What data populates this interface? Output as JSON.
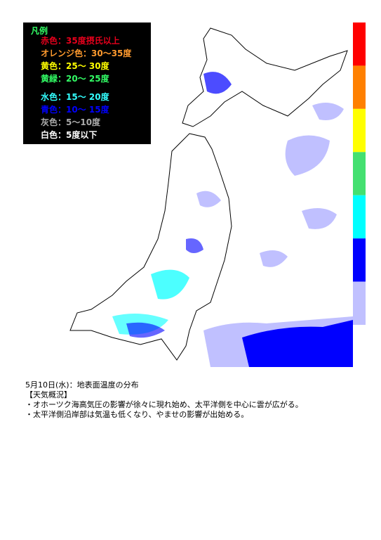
{
  "legend": {
    "title": "凡例",
    "items": [
      {
        "label": "赤色：35度摂氏以上",
        "color": "#e8001c"
      },
      {
        "label": "オレンジ色：30～35度",
        "color": "#ff9a2e"
      },
      {
        "label": "黄色：25～ 30度",
        "color": "#ffff00"
      },
      {
        "label": "黄緑：20～ 25度",
        "color": "#33ff66"
      },
      {
        "label": "水色：15～ 20度",
        "color": "#33ffff"
      },
      {
        "label": "青色：10～ 15度",
        "color": "#0000ff"
      },
      {
        "label": "灰色：5～10度",
        "color": "#aaaaaa"
      },
      {
        "label": "白色：5度以下",
        "color": "#ffffff"
      }
    ]
  },
  "scale_colors": [
    "#ff0000",
    "#ff8000",
    "#ffff00",
    "#44e070",
    "#00ffff",
    "#0000ff",
    "#c0c0ff"
  ],
  "caption": {
    "title": "5月10日(水)：地表面温度の分布",
    "heading": "【天気概況】",
    "lines": [
      "・オホーツク海高気圧の影響が徐々に現れ始め、太平洋側を中心に雲が広がる。",
      "・太平洋側沿岸部は気温も低くなり、やませの影響が出始める。"
    ]
  }
}
